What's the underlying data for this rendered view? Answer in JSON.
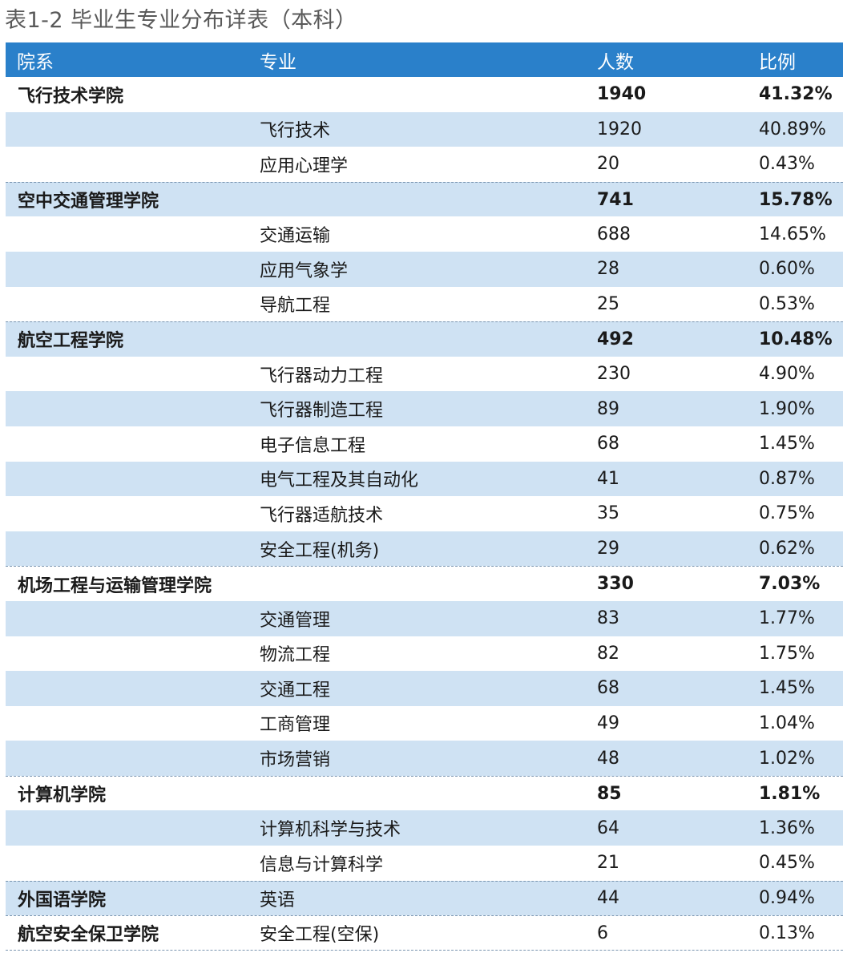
{
  "title": "表1-2 毕业生专业分布详表（本科）",
  "table": {
    "headers": {
      "dept": "院系",
      "major": "专业",
      "count": "人数",
      "ratio": "比例"
    },
    "rows": [
      {
        "dept": "飞行技术学院",
        "major": "",
        "count": "1940",
        "ratio": "41.32%"
      },
      {
        "dept": "",
        "major": "飞行技术",
        "count": "1920",
        "ratio": "40.89%"
      },
      {
        "dept": "",
        "major": "应用心理学",
        "count": "20",
        "ratio": "0.43%"
      },
      {
        "dept": "空中交通管理学院",
        "major": "",
        "count": "741",
        "ratio": "15.78%"
      },
      {
        "dept": "",
        "major": "交通运输",
        "count": "688",
        "ratio": "14.65%"
      },
      {
        "dept": "",
        "major": "应用气象学",
        "count": "28",
        "ratio": "0.60%"
      },
      {
        "dept": "",
        "major": "导航工程",
        "count": "25",
        "ratio": "0.53%"
      },
      {
        "dept": "航空工程学院",
        "major": "",
        "count": "492",
        "ratio": "10.48%"
      },
      {
        "dept": "",
        "major": "飞行器动力工程",
        "count": "230",
        "ratio": "4.90%"
      },
      {
        "dept": "",
        "major": "飞行器制造工程",
        "count": "89",
        "ratio": "1.90%"
      },
      {
        "dept": "",
        "major": "电子信息工程",
        "count": "68",
        "ratio": "1.45%"
      },
      {
        "dept": "",
        "major": "电气工程及其自动化",
        "count": "41",
        "ratio": "0.87%"
      },
      {
        "dept": "",
        "major": "飞行器适航技术",
        "count": "35",
        "ratio": "0.75%"
      },
      {
        "dept": "",
        "major": "安全工程(机务)",
        "count": "29",
        "ratio": "0.62%"
      },
      {
        "dept": "机场工程与运输管理学院",
        "major": "",
        "count": "330",
        "ratio": "7.03%"
      },
      {
        "dept": "",
        "major": "交通管理",
        "count": "83",
        "ratio": "1.77%"
      },
      {
        "dept": "",
        "major": "物流工程",
        "count": "82",
        "ratio": "1.75%"
      },
      {
        "dept": "",
        "major": "交通工程",
        "count": "68",
        "ratio": "1.45%"
      },
      {
        "dept": "",
        "major": "工商管理",
        "count": "49",
        "ratio": "1.04%"
      },
      {
        "dept": "",
        "major": "市场营销",
        "count": "48",
        "ratio": "1.02%"
      },
      {
        "dept": "计算机学院",
        "major": "",
        "count": "85",
        "ratio": "1.81%"
      },
      {
        "dept": "",
        "major": "计算机科学与技术",
        "count": "64",
        "ratio": "1.36%"
      },
      {
        "dept": "",
        "major": "信息与计算科学",
        "count": "21",
        "ratio": "0.45%"
      },
      {
        "dept": "外国语学院",
        "major": "英语",
        "count": "44",
        "ratio": "0.94%"
      },
      {
        "dept": "航空安全保卫学院",
        "major": "安全工程(空保)",
        "count": "6",
        "ratio": "0.13%"
      }
    ]
  },
  "colors": {
    "header_bg": "#2a80ca",
    "header_text": "#ffffff",
    "stripe_bg": "#cfe2f3",
    "title_text": "#595959"
  }
}
